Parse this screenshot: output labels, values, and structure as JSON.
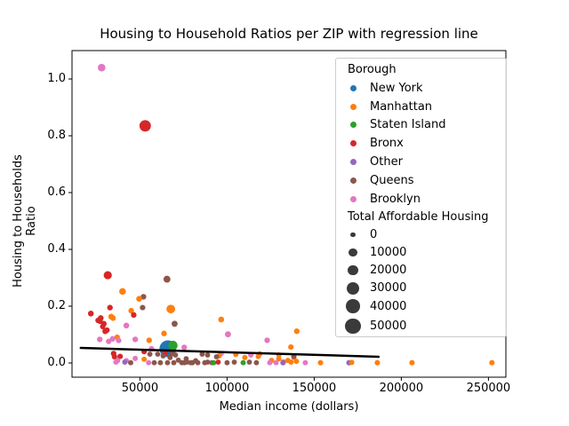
{
  "chart_data": {
    "type": "scatter",
    "title": "Housing to Household Ratios per ZIP with regression line",
    "xlabel": "Median income (dollars)",
    "ylabel": "Housing to Households Ratio",
    "xlim": [
      11000,
      260000
    ],
    "ylim": [
      -0.05,
      1.1
    ],
    "grid": false,
    "legend_position": "upper right",
    "xticks": [
      {
        "value": 50000,
        "label": "50000"
      },
      {
        "value": 100000,
        "label": "100000"
      },
      {
        "value": 150000,
        "label": "150000"
      },
      {
        "value": 200000,
        "label": "200000"
      },
      {
        "value": 250000,
        "label": "250000"
      }
    ],
    "yticks": [
      {
        "value": 0.0,
        "label": "0.0"
      },
      {
        "value": 0.2,
        "label": "0.2"
      },
      {
        "value": 0.4,
        "label": "0.4"
      },
      {
        "value": 0.6,
        "label": "0.6"
      },
      {
        "value": 0.8,
        "label": "0.8"
      },
      {
        "value": 1.0,
        "label": "1.0"
      }
    ],
    "legend": {
      "title": "Borough",
      "boroughs": [
        {
          "name": "New York",
          "color": "#1f77b4"
        },
        {
          "name": "Manhattan",
          "color": "#ff7f0e"
        },
        {
          "name": "Staten Island",
          "color": "#2ca02c"
        },
        {
          "name": "Bronx",
          "color": "#d62728"
        },
        {
          "name": "Other",
          "color": "#9467bd"
        },
        {
          "name": "Queens",
          "color": "#8c564b"
        },
        {
          "name": "Brooklyn",
          "color": "#e377c2"
        }
      ],
      "size_title": "Total Affordable Housing",
      "size_values": [
        0,
        10000,
        20000,
        30000,
        40000,
        50000
      ],
      "size_dot_color": "#3a3a3a"
    },
    "regression_line": {
      "x1": 16000,
      "y1": 0.053,
      "x2": 187000,
      "y2": 0.022,
      "color": "#000000",
      "width": 2.5
    },
    "points": [
      [
        28000,
        1.04,
        6,
        8000
      ],
      [
        53000,
        0.835,
        3,
        25000
      ],
      [
        31500,
        0.309,
        3,
        10000
      ],
      [
        65500,
        0.295,
        5,
        6000
      ],
      [
        40000,
        0.252,
        1,
        5000
      ],
      [
        52000,
        0.233,
        5,
        2200
      ],
      [
        49500,
        0.226,
        1,
        2600
      ],
      [
        67700,
        0.19,
        1,
        12000
      ],
      [
        32800,
        0.195,
        3,
        2000
      ],
      [
        51500,
        0.195,
        5,
        1600
      ],
      [
        45000,
        0.184,
        1,
        2000
      ],
      [
        21800,
        0.174,
        3,
        2600
      ],
      [
        46400,
        0.169,
        3,
        2000
      ],
      [
        33500,
        0.163,
        1,
        2600
      ],
      [
        27500,
        0.158,
        3,
        2600
      ],
      [
        34500,
        0.158,
        1,
        2000
      ],
      [
        26000,
        0.15,
        3,
        2000
      ],
      [
        96600,
        0.153,
        1,
        2600
      ],
      [
        29200,
        0.138,
        3,
        2600
      ],
      [
        27000,
        0.147,
        3,
        1600
      ],
      [
        69900,
        0.138,
        5,
        3200
      ],
      [
        42200,
        0.132,
        6,
        2600
      ],
      [
        28600,
        0.128,
        3,
        1600
      ],
      [
        31100,
        0.116,
        3,
        1600
      ],
      [
        30100,
        0.112,
        3,
        2600
      ],
      [
        140000,
        0.112,
        1,
        2000
      ],
      [
        63800,
        0.104,
        1,
        2000
      ],
      [
        100500,
        0.101,
        6,
        3200
      ],
      [
        36900,
        0.091,
        1,
        1600
      ],
      [
        34300,
        0.085,
        6,
        2000
      ],
      [
        26900,
        0.083,
        6,
        2000
      ],
      [
        47300,
        0.083,
        6,
        2000
      ],
      [
        55300,
        0.08,
        1,
        2000
      ],
      [
        123000,
        0.08,
        6,
        2000
      ],
      [
        32000,
        0.076,
        6,
        1600
      ],
      [
        37800,
        0.079,
        6,
        1600
      ],
      [
        66000,
        0.05,
        0,
        60000
      ],
      [
        68900,
        0.062,
        2,
        15000
      ],
      [
        136600,
        0.056,
        1,
        1600
      ],
      [
        56600,
        0.05,
        6,
        2000
      ],
      [
        75400,
        0.055,
        6,
        2000
      ],
      [
        52400,
        0.04,
        3,
        1600
      ],
      [
        64300,
        0.035,
        3,
        1600
      ],
      [
        68500,
        0.033,
        5,
        1600
      ],
      [
        34900,
        0.033,
        3,
        2000
      ],
      [
        38600,
        0.023,
        3,
        1600
      ],
      [
        35400,
        0.022,
        3,
        1600
      ],
      [
        96600,
        0.033,
        6,
        1200
      ],
      [
        95400,
        0.025,
        1,
        1200
      ],
      [
        105000,
        0.03,
        1,
        1200
      ],
      [
        113600,
        0.028,
        6,
        1400
      ],
      [
        117900,
        0.023,
        1,
        1200
      ],
      [
        118700,
        0.032,
        1,
        1200
      ],
      [
        125500,
        0.009,
        1,
        1200
      ],
      [
        129700,
        0.015,
        1,
        1200
      ],
      [
        129700,
        0.028,
        1,
        1200
      ],
      [
        132300,
        0.004,
        1,
        1200
      ],
      [
        134900,
        0.009,
        1,
        1200
      ],
      [
        138300,
        0.02,
        1,
        1200
      ],
      [
        138300,
        0.023,
        5,
        1200
      ],
      [
        110200,
        0.019,
        1,
        1200
      ],
      [
        36200,
        0.003,
        6,
        1100
      ],
      [
        42200,
        0.008,
        6,
        1100
      ],
      [
        44700,
        0.001,
        5,
        1100
      ],
      [
        47300,
        0.016,
        6,
        1100
      ],
      [
        52400,
        0.013,
        1,
        1100
      ],
      [
        55000,
        0.001,
        6,
        1100
      ],
      [
        37100,
        0.008,
        6,
        1100
      ],
      [
        41300,
        0.003,
        4,
        1100
      ],
      [
        55700,
        0.031,
        5,
        900
      ],
      [
        60200,
        0.031,
        5,
        900
      ],
      [
        63300,
        0.025,
        5,
        900
      ],
      [
        67300,
        0.019,
        5,
        900
      ],
      [
        70400,
        0.028,
        5,
        900
      ],
      [
        74000,
        0.001,
        5,
        900
      ],
      [
        77000,
        0.003,
        5,
        900
      ],
      [
        80100,
        0.001,
        5,
        900
      ],
      [
        83200,
        0.001,
        5,
        900
      ],
      [
        85700,
        0.031,
        5,
        900
      ],
      [
        88800,
        0.028,
        5,
        900
      ],
      [
        91300,
        0.001,
        5,
        900
      ],
      [
        93900,
        0.022,
        5,
        900
      ],
      [
        58200,
        0.001,
        5,
        900
      ],
      [
        61700,
        0.001,
        5,
        900
      ],
      [
        65800,
        0.001,
        5,
        900
      ],
      [
        69400,
        0.001,
        5,
        900
      ],
      [
        72000,
        0.01,
        5,
        900
      ],
      [
        75500,
        0.001,
        5,
        900
      ],
      [
        76500,
        0.015,
        5,
        900
      ],
      [
        79100,
        0.001,
        5,
        900
      ],
      [
        82000,
        0.008,
        5,
        900
      ],
      [
        87200,
        0.001,
        5,
        900
      ],
      [
        88800,
        0.003,
        5,
        900
      ],
      [
        92300,
        0.001,
        2,
        1100
      ],
      [
        94900,
        0.003,
        3,
        900
      ],
      [
        100000,
        0.001,
        5,
        900
      ],
      [
        104100,
        0.003,
        5,
        900
      ],
      [
        109200,
        0.001,
        2,
        1100
      ],
      [
        112800,
        0.003,
        5,
        900
      ],
      [
        116800,
        0.001,
        5,
        900
      ],
      [
        124500,
        0.001,
        6,
        1100
      ],
      [
        128100,
        0.001,
        6,
        1100
      ],
      [
        132100,
        0.001,
        4,
        1400
      ],
      [
        136700,
        0.003,
        1,
        1100
      ],
      [
        139800,
        0.006,
        1,
        1100
      ],
      [
        144900,
        0.001,
        6,
        1100
      ],
      [
        153600,
        0.001,
        1,
        1400
      ],
      [
        170000,
        0.001,
        4,
        1800
      ],
      [
        171500,
        0.002,
        1,
        1100
      ],
      [
        186200,
        0.001,
        1,
        1400
      ],
      [
        206100,
        0.001,
        1,
        1400
      ],
      [
        252000,
        0.001,
        1,
        1400
      ]
    ]
  }
}
